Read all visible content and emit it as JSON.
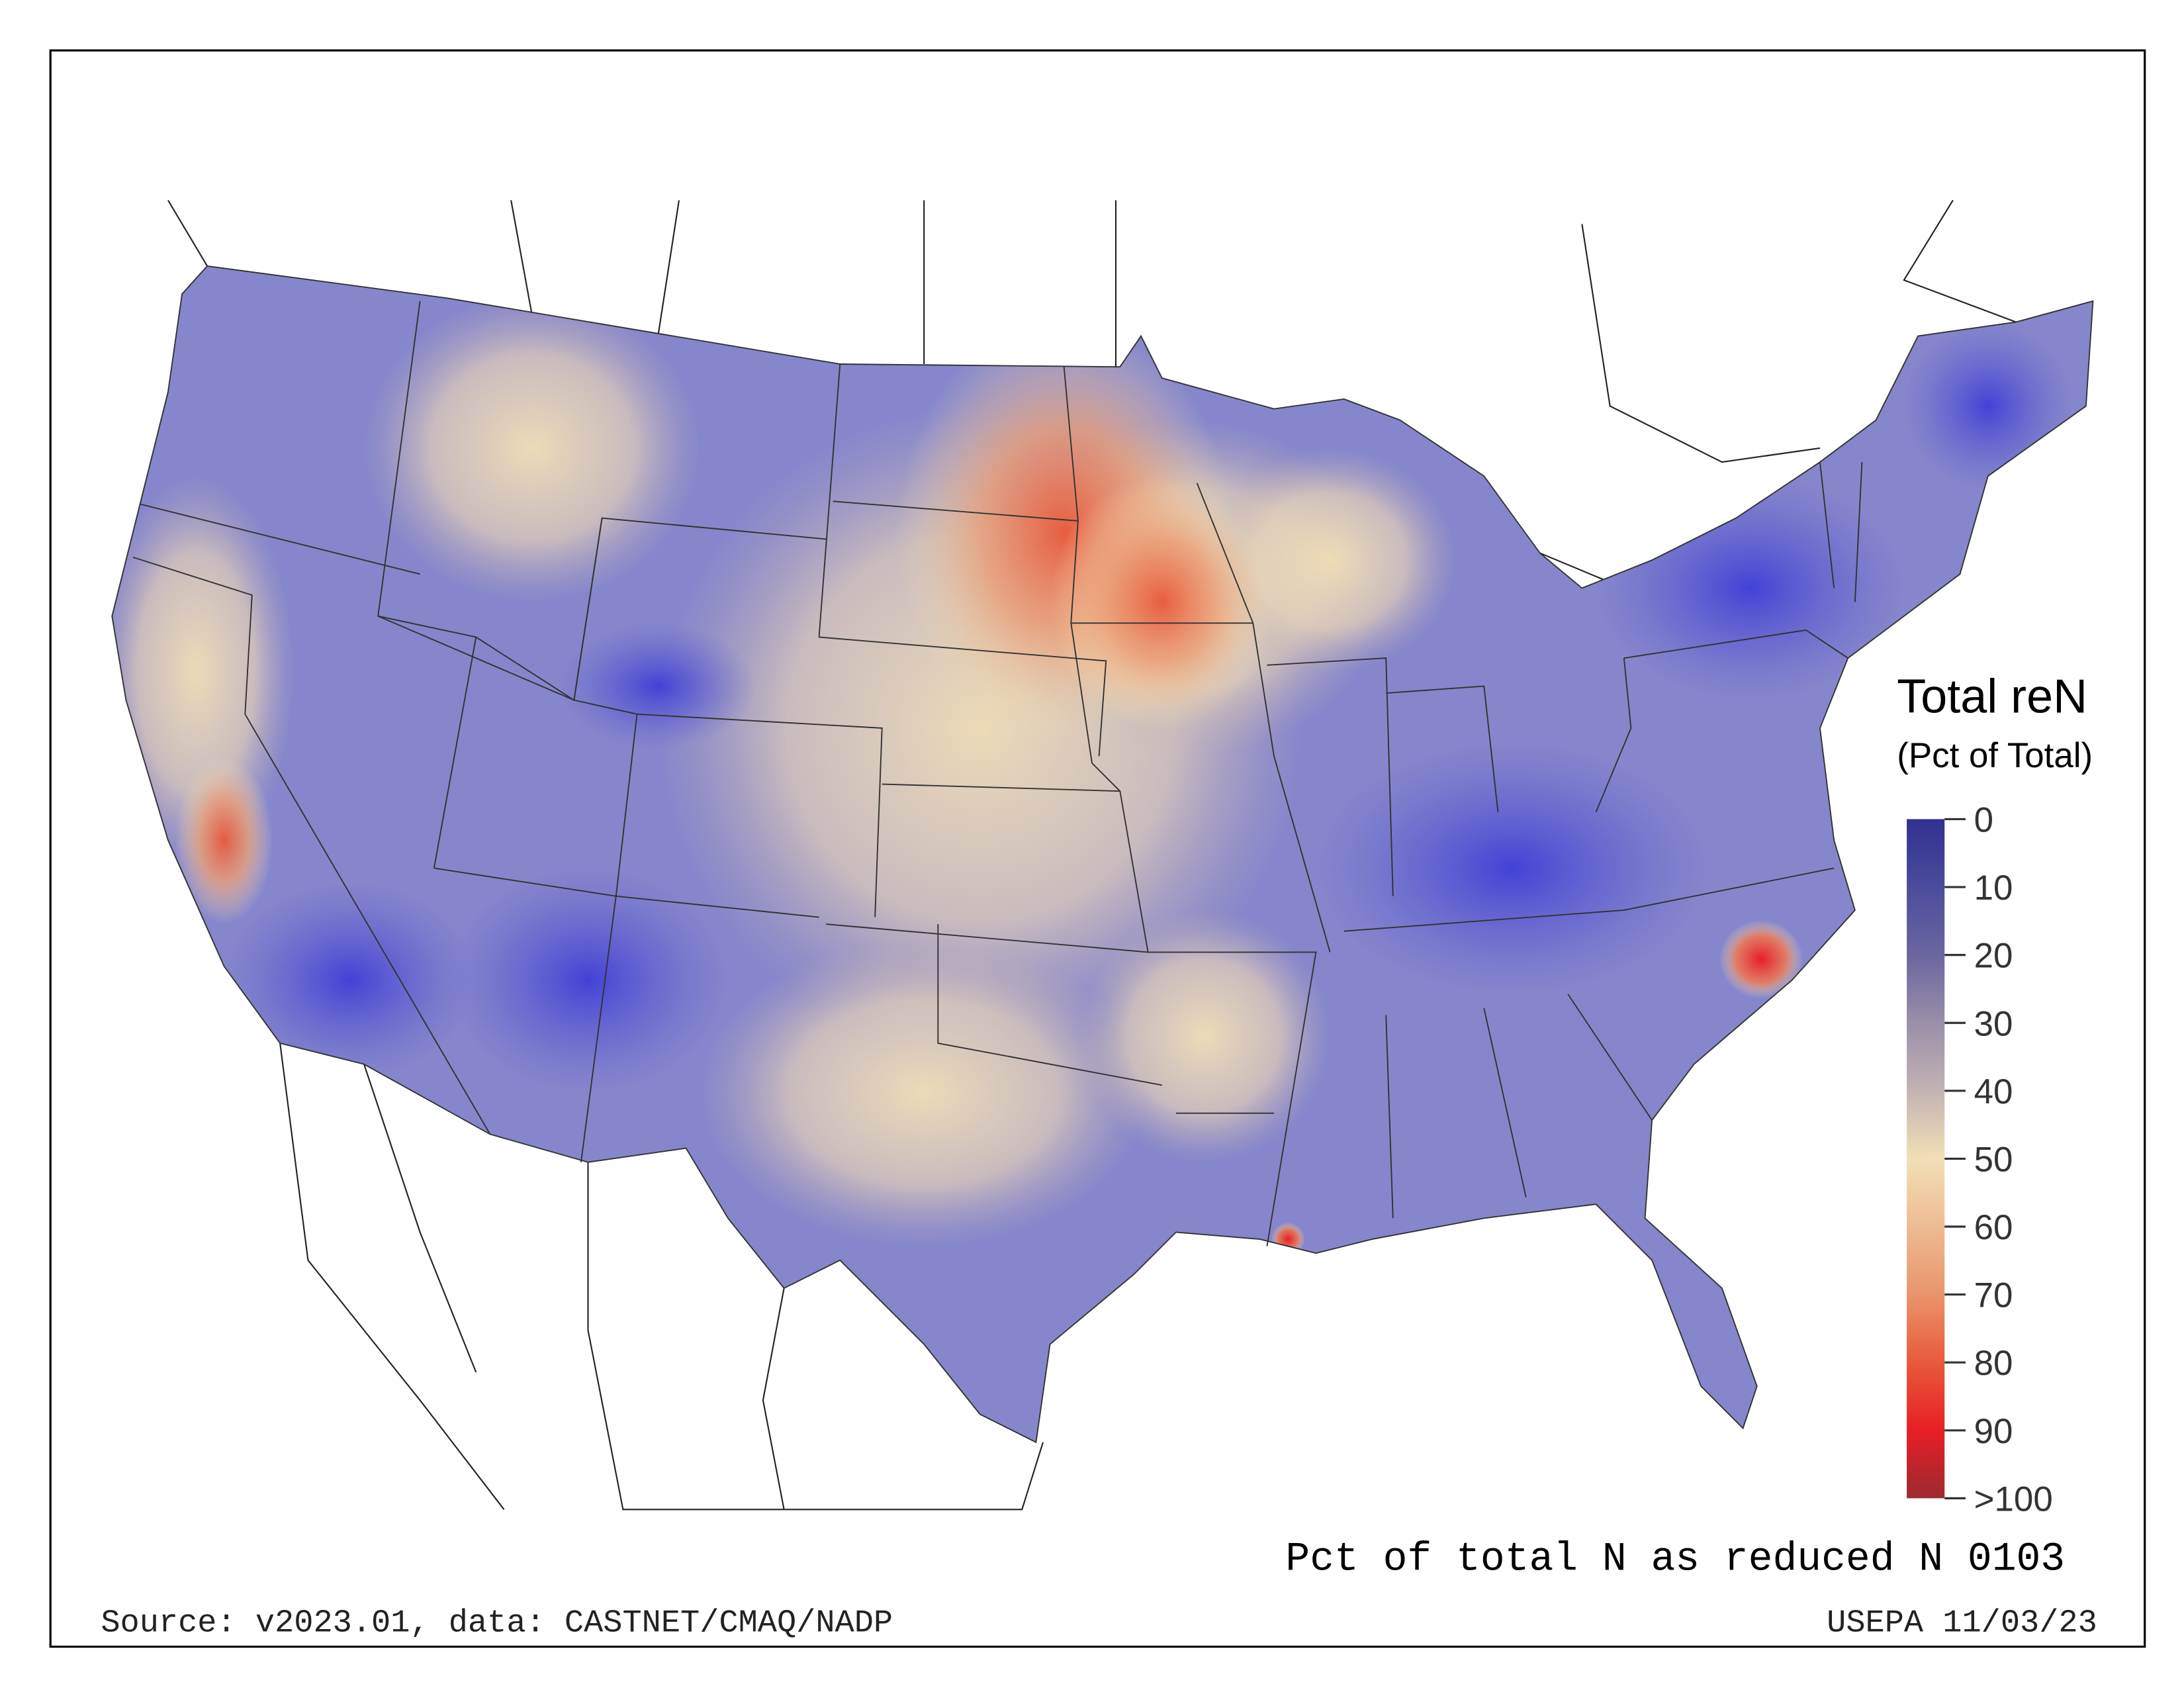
{
  "legend": {
    "title": "Total reN",
    "subtitle": "(Pct of Total)",
    "ticks": [
      "0",
      "10",
      "20",
      "30",
      "40",
      "50",
      "60",
      "70",
      "80",
      "90",
      ">100"
    ],
    "colors": [
      "#2e3190",
      "#4b4c9c",
      "#6b66a0",
      "#998fa9",
      "#c3b3b3",
      "#f2dfb6",
      "#eebb92",
      "#ea946c",
      "#e85a3b",
      "#e81e25",
      "#9c2a31"
    ]
  },
  "map": {
    "caption": "Pct of total N as reduced N 0103",
    "source": "Source: v2023.01, data: CASTNET/CMAQ/NADP",
    "credit": "USEPA 11/03/23"
  }
}
